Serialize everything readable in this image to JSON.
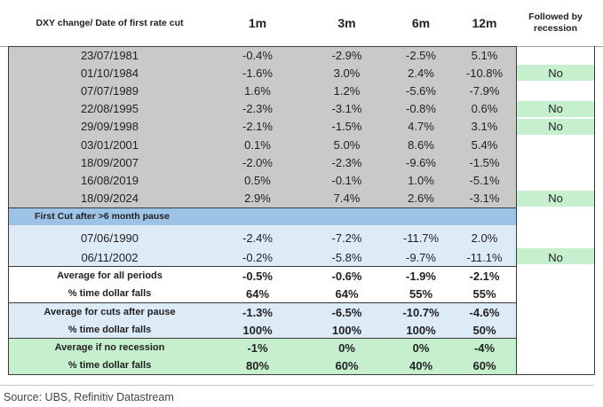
{
  "header": {
    "col0": "DXY change/ Date of first rate cut",
    "col1": "1m",
    "col2": "3m",
    "col3": "6m",
    "col4": "12m",
    "col5": "Followed by recession"
  },
  "cut_rows": [
    {
      "date": "23/07/1981",
      "m1": "-0.4%",
      "m3": "-2.9%",
      "m6": "-2.5%",
      "m12": "5.1%",
      "recession": ""
    },
    {
      "date": "01/10/1984",
      "m1": "-1.6%",
      "m3": "3.0%",
      "m6": "2.4%",
      "m12": "-10.8%",
      "recession": "No"
    },
    {
      "date": "07/07/1989",
      "m1": "1.6%",
      "m3": "1.2%",
      "m6": "-5.6%",
      "m12": "-7.9%",
      "recession": ""
    },
    {
      "date": "22/08/1995",
      "m1": "-2.3%",
      "m3": "-3.1%",
      "m6": "-0.8%",
      "m12": "0.6%",
      "recession": "No"
    },
    {
      "date": "29/09/1998",
      "m1": "-2.1%",
      "m3": "-1.5%",
      "m6": "4.7%",
      "m12": "3.1%",
      "recession": "No"
    },
    {
      "date": "03/01/2001",
      "m1": "0.1%",
      "m3": "5.0%",
      "m6": "8.6%",
      "m12": "5.4%",
      "recession": ""
    },
    {
      "date": "18/09/2007",
      "m1": "-2.0%",
      "m3": "-2.3%",
      "m6": "-9.6%",
      "m12": "-1.5%",
      "recession": ""
    },
    {
      "date": "16/08/2019",
      "m1": "0.5%",
      "m3": "-0.1%",
      "m6": "1.0%",
      "m12": "-5.1%",
      "recession": ""
    },
    {
      "date": "18/09/2024",
      "m1": "2.9%",
      "m3": "7.4%",
      "m6": "2.6%",
      "m12": "-3.1%",
      "recession": "No"
    }
  ],
  "pause_heading": "First Cut after >6 month pause",
  "pause_rows": [
    {
      "date": "07/06/1990",
      "m1": "-2.4%",
      "m3": "-7.2%",
      "m6": "-11.7%",
      "m12": "2.0%",
      "recession": ""
    },
    {
      "date": "06/11/2002",
      "m1": "-0.2%",
      "m3": "-5.8%",
      "m6": "-9.7%",
      "m12": "-11.1%",
      "recession": "No"
    }
  ],
  "summary": {
    "all": {
      "avg": {
        "label": "Average for all periods",
        "m1": "-0.5%",
        "m3": "-0.6%",
        "m6": "-1.9%",
        "m12": "-2.1%"
      },
      "pct": {
        "label": "% time dollar falls",
        "m1": "64%",
        "m3": "64%",
        "m6": "55%",
        "m12": "55%"
      }
    },
    "pause": {
      "avg": {
        "label": "Average for cuts after pause",
        "m1": "-1.3%",
        "m3": "-6.5%",
        "m6": "-10.7%",
        "m12": "-4.6%"
      },
      "pct": {
        "label": "% time dollar falls",
        "m1": "100%",
        "m3": "100%",
        "m6": "100%",
        "m12": "50%"
      }
    },
    "norec": {
      "avg": {
        "label": "Average if no recession",
        "m1": "-1%",
        "m3": "0%",
        "m6": "0%",
        "m12": "-4%"
      },
      "pct": {
        "label": "% time dollar falls",
        "m1": "80%",
        "m3": "60%",
        "m6": "40%",
        "m12": "60%"
      }
    }
  },
  "source": "Source: UBS, Refinitiv Datastream",
  "colors": {
    "gray_band": "#c9c9c9",
    "blue_heading": "#9dc3e6",
    "blue_band": "#ddebf7",
    "green_band": "#c6efce",
    "no_box": "#c6efce"
  }
}
